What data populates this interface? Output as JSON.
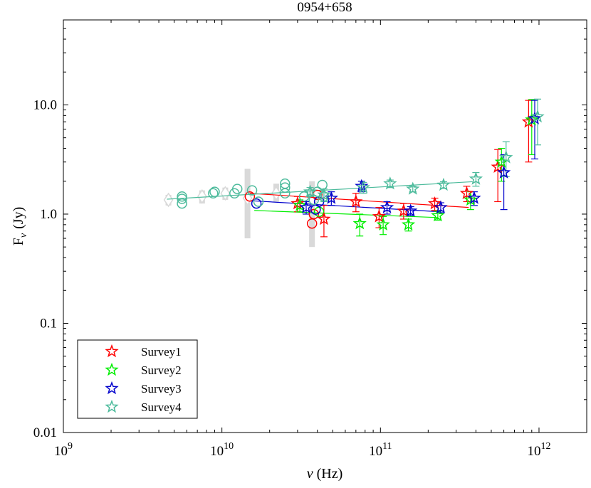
{
  "chart_data": {
    "type": "scatter",
    "title": "0954+658",
    "xlabel_symbol": "ν",
    "xlabel_unit": "(Hz)",
    "ylabel_main": "F",
    "ylabel_sub": "ν",
    "ylabel_unit": "(Jy)",
    "xscale": "log",
    "yscale": "log",
    "xlim": [
      1000000000.0,
      2000000000000.0
    ],
    "ylim": [
      0.01,
      60
    ],
    "x_ticks": [
      {
        "value": 1000000000.0,
        "base": "10",
        "exp": "9"
      },
      {
        "value": 10000000000.0,
        "base": "10",
        "exp": "10"
      },
      {
        "value": 100000000000.0,
        "base": "10",
        "exp": "11"
      },
      {
        "value": 1000000000000.0,
        "base": "10",
        "exp": "12"
      }
    ],
    "y_ticks": [
      {
        "value": 0.01,
        "label": "0.01"
      },
      {
        "value": 0.1,
        "label": "0.1"
      },
      {
        "value": 1,
        "label": "1.0"
      },
      {
        "value": 10,
        "label": "10.0"
      }
    ],
    "legend_position": "bottom-left",
    "archival_color": "#d9d9d9",
    "archival_diamonds": [
      {
        "x": 4600000000.0,
        "y": 1.35,
        "lo": 1.2,
        "hi": 1.5
      },
      {
        "x": 7500000000.0,
        "y": 1.45,
        "lo": 1.25,
        "hi": 1.65
      },
      {
        "x": 10500000000.0,
        "y": 1.55,
        "lo": 1.35,
        "hi": 1.75
      },
      {
        "x": 14500000000.0,
        "y": 1.4,
        "lo": 0.6,
        "hi": 2.6
      },
      {
        "x": 22000000000.0,
        "y": 1.55,
        "lo": 1.3,
        "hi": 1.9
      },
      {
        "x": 37000000000.0,
        "y": 1.3,
        "lo": 0.5,
        "hi": 2.0
      }
    ],
    "series": [
      {
        "name": "Survey1",
        "color": "#ff0000",
        "line_x": [
          15000000000.0,
          360000000000.0
        ],
        "line_y": [
          1.55,
          1.15
        ],
        "stars": [
          {
            "x": 30000000000.0,
            "y": 1.25,
            "lo": 1.05,
            "hi": 1.45
          },
          {
            "x": 44000000000.0,
            "y": 0.9,
            "lo": 0.62,
            "hi": 1.2
          },
          {
            "x": 70000000000.0,
            "y": 1.3,
            "lo": 1.05,
            "hi": 1.55
          },
          {
            "x": 98000000000.0,
            "y": 0.95,
            "lo": 0.75,
            "hi": 1.15
          },
          {
            "x": 140000000000.0,
            "y": 1.07,
            "lo": 0.9,
            "hi": 1.25
          },
          {
            "x": 220000000000.0,
            "y": 1.25,
            "lo": 1.08,
            "hi": 1.4
          },
          {
            "x": 350000000000.0,
            "y": 1.55,
            "lo": 1.3,
            "hi": 1.8
          },
          {
            "x": 550000000000.0,
            "y": 2.7,
            "lo": 1.3,
            "hi": 3.9
          },
          {
            "x": 860000000000.0,
            "y": 7.0,
            "lo": 3.0,
            "hi": 11.0
          }
        ],
        "circles": [
          {
            "x": 15000000000.0,
            "y": 1.45
          },
          {
            "x": 37000000000.0,
            "y": 0.82
          },
          {
            "x": 38000000000.0,
            "y": 1.0
          },
          {
            "x": 40000000000.0,
            "y": 1.5
          }
        ]
      },
      {
        "name": "Survey2",
        "color": "#00ee00",
        "line_x": [
          16000000000.0,
          230000000000.0
        ],
        "line_y": [
          1.08,
          0.93
        ],
        "stars": [
          {
            "x": 31000000000.0,
            "y": 1.2,
            "lo": 1.05,
            "hi": 1.35
          },
          {
            "x": 74000000000.0,
            "y": 0.82,
            "lo": 0.63,
            "hi": 1.0
          },
          {
            "x": 104000000000.0,
            "y": 0.8,
            "lo": 0.65,
            "hi": 0.95
          },
          {
            "x": 150000000000.0,
            "y": 0.8,
            "lo": 0.7,
            "hi": 0.9
          },
          {
            "x": 230000000000.0,
            "y": 0.97,
            "lo": 0.88,
            "hi": 1.06
          },
          {
            "x": 370000000000.0,
            "y": 1.35,
            "lo": 1.1,
            "hi": 1.6
          },
          {
            "x": 580000000000.0,
            "y": 3.0,
            "lo": 2.0,
            "hi": 4.0
          },
          {
            "x": 900000000000.0,
            "y": 7.3,
            "lo": 3.5,
            "hi": 11.2
          }
        ],
        "circles": [
          {
            "x": 41000000000.0,
            "y": 1.05
          }
        ]
      },
      {
        "name": "Survey3",
        "color": "#0000cc",
        "line_x": [
          16000000000.0,
          240000000000.0
        ],
        "line_y": [
          1.32,
          1.05
        ],
        "stars": [
          {
            "x": 34000000000.0,
            "y": 1.15,
            "lo": 1.0,
            "hi": 1.3
          },
          {
            "x": 49000000000.0,
            "y": 1.4,
            "lo": 1.2,
            "hi": 1.6
          },
          {
            "x": 76000000000.0,
            "y": 1.8,
            "lo": 1.6,
            "hi": 2.0
          },
          {
            "x": 110000000000.0,
            "y": 1.15,
            "lo": 1.0,
            "hi": 1.3
          },
          {
            "x": 155000000000.0,
            "y": 1.07,
            "lo": 0.97,
            "hi": 1.17
          },
          {
            "x": 240000000000.0,
            "y": 1.15,
            "lo": 1.03,
            "hi": 1.27
          },
          {
            "x": 390000000000.0,
            "y": 1.4,
            "lo": 1.2,
            "hi": 1.6
          },
          {
            "x": 600000000000.0,
            "y": 2.4,
            "lo": 1.1,
            "hi": 3.5
          },
          {
            "x": 940000000000.0,
            "y": 7.5,
            "lo": 3.2,
            "hi": 11.0
          }
        ],
        "circles": [
          {
            "x": 16500000000.0,
            "y": 1.25
          },
          {
            "x": 39000000000.0,
            "y": 1.1
          },
          {
            "x": 41000000000.0,
            "y": 1.3
          }
        ]
      },
      {
        "name": "Survey4",
        "color": "#4dbb9c",
        "line_x": [
          4500000000.0,
          380000000000.0
        ],
        "line_y": [
          1.37,
          1.98
        ],
        "stars": [
          {
            "x": 36000000000.0,
            "y": 1.6,
            "lo": 1.45,
            "hi": 1.75
          },
          {
            "x": 44000000000.0,
            "y": 1.5,
            "lo": 1.3,
            "hi": 1.7
          },
          {
            "x": 78000000000.0,
            "y": 1.75,
            "lo": 1.55,
            "hi": 1.95
          },
          {
            "x": 115000000000.0,
            "y": 1.9,
            "lo": 1.75,
            "hi": 2.05
          },
          {
            "x": 160000000000.0,
            "y": 1.7,
            "lo": 1.6,
            "hi": 1.8
          },
          {
            "x": 250000000000.0,
            "y": 1.85,
            "lo": 1.72,
            "hi": 1.98
          },
          {
            "x": 400000000000.0,
            "y": 2.1,
            "lo": 1.8,
            "hi": 2.4
          },
          {
            "x": 620000000000.0,
            "y": 3.3,
            "lo": 2.2,
            "hi": 4.6
          },
          {
            "x": 980000000000.0,
            "y": 7.8,
            "lo": 4.3,
            "hi": 11.3
          }
        ],
        "circles": [
          {
            "x": 5600000000.0,
            "y": 1.25
          },
          {
            "x": 5600000000.0,
            "y": 1.38
          },
          {
            "x": 5600000000.0,
            "y": 1.45
          },
          {
            "x": 8800000000.0,
            "y": 1.55
          },
          {
            "x": 9000000000.0,
            "y": 1.6
          },
          {
            "x": 12000000000.0,
            "y": 1.55
          },
          {
            "x": 12500000000.0,
            "y": 1.7
          },
          {
            "x": 15500000000.0,
            "y": 1.65
          },
          {
            "x": 17000000000.0,
            "y": 1.3
          },
          {
            "x": 25000000000.0,
            "y": 1.55
          },
          {
            "x": 25000000000.0,
            "y": 1.75
          },
          {
            "x": 25000000000.0,
            "y": 1.9
          },
          {
            "x": 33000000000.0,
            "y": 1.45
          },
          {
            "x": 38000000000.0,
            "y": 1.35
          },
          {
            "x": 40000000000.0,
            "y": 1.6
          },
          {
            "x": 43000000000.0,
            "y": 1.85
          },
          {
            "x": 44000000000.0,
            "y": 1.45
          }
        ]
      }
    ]
  }
}
